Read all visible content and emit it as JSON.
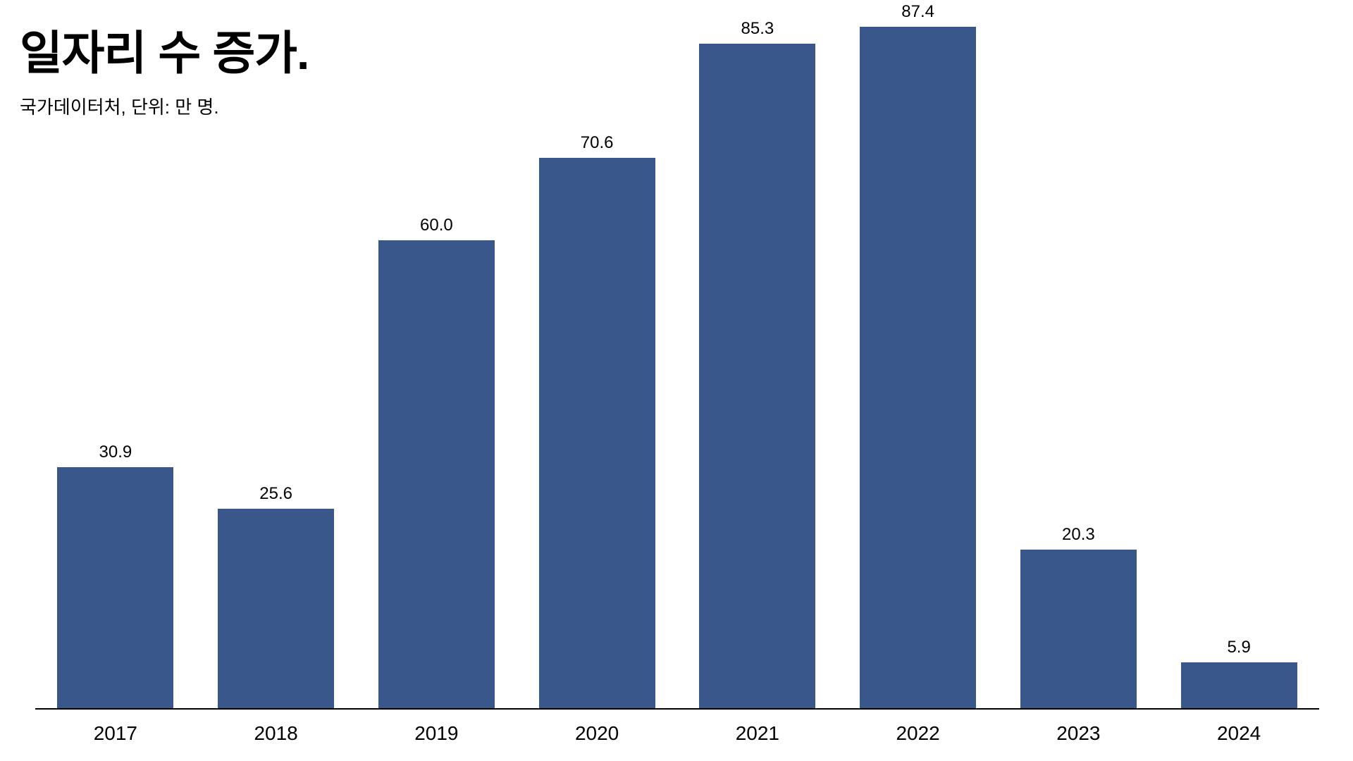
{
  "header": {
    "title": "일자리 수 증가.",
    "subtitle": "국가데이터처, 단위: 만 명."
  },
  "chart_data": {
    "type": "bar",
    "title": "일자리 수 증가.",
    "subtitle": "국가데이터처, 단위: 만 명.",
    "source": "국가데이터처",
    "unit": "만 명",
    "categories": [
      "2017",
      "2018",
      "2019",
      "2020",
      "2021",
      "2022",
      "2023",
      "2024"
    ],
    "values": [
      30.9,
      25.6,
      60.0,
      70.6,
      85.3,
      87.4,
      20.3,
      5.9
    ],
    "value_labels": [
      "30.9",
      "25.6",
      "60.0",
      "70.6",
      "85.3",
      "87.4",
      "20.3",
      "5.9"
    ],
    "xlabel": "",
    "ylabel": "만 명",
    "ylim": [
      0,
      91
    ],
    "grid": false,
    "legend_position": "none",
    "bar_color": "#3A578C",
    "axis_color": "#000000",
    "label_color": "#000000",
    "background_color": "#FFFFFF"
  }
}
